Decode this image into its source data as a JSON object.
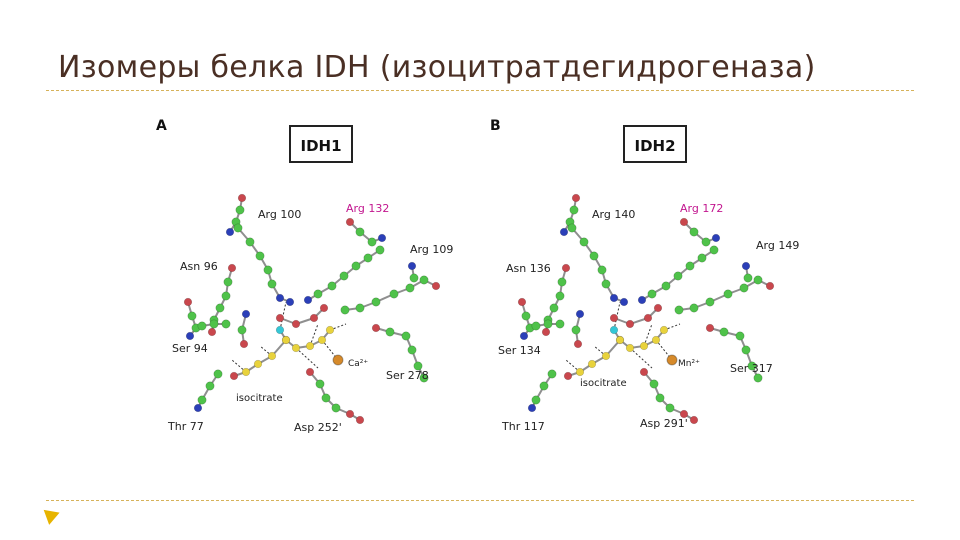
{
  "slide": {
    "title": "Изомеры белка IDH (изоцитратдегидрогеназа)"
  },
  "panels": [
    {
      "letter": "A",
      "protein": "IDH1",
      "labels": {
        "arg_a": "Arg 100",
        "arg_mut": "Arg 132",
        "arg_b": "Arg 109",
        "asn": "Asn 96",
        "ser_a": "Ser 94",
        "ser_b": "Ser 278",
        "thr": "Thr 77",
        "asp": "Asp 252'",
        "ion": "Ca²⁺",
        "ligand": "isocitrate"
      }
    },
    {
      "letter": "B",
      "protein": "IDH2",
      "labels": {
        "arg_a": "Arg 140",
        "arg_mut": "Arg 172",
        "arg_b": "Arg 149",
        "asn": "Asn 136",
        "ser_a": "Ser 134",
        "ser_b": "Ser 317",
        "thr": "Thr 117",
        "asp": "Asp 291'",
        "ion": "Mn²⁺",
        "ligand": "isocitrate"
      }
    }
  ],
  "colors": {
    "carbon": "#4fc24a",
    "nitrogen": "#2b3fb8",
    "oxygen": "#c9474d",
    "sulfur_yellow": "#e8d23c",
    "cyan": "#34c7d6",
    "metal": "#d68a2a",
    "mutant_label": "#c2168f"
  }
}
